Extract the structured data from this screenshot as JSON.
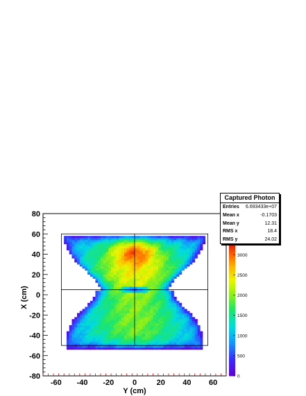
{
  "chart_data": {
    "type": "heatmap",
    "title": "",
    "xlabel": "Y (cm)",
    "ylabel": "X (cm)",
    "xlim": [
      -70,
      70
    ],
    "ylim": [
      -80,
      80
    ],
    "x_ticks": [
      "-60",
      "-40",
      "-20",
      "0",
      "20",
      "40",
      "60"
    ],
    "y_ticks": [
      "80",
      "60",
      "40",
      "20",
      "0",
      "-20",
      "-40",
      "-60",
      "-80"
    ],
    "colorbar": {
      "min": 0,
      "max": 3300,
      "ticks": [
        "3000",
        "2500",
        "2000",
        "1500",
        "1000",
        "500",
        "0"
      ],
      "tick_values": [
        3000,
        2500,
        2000,
        1500,
        1000,
        500,
        0
      ]
    },
    "overlay_box": {
      "x": [
        -56,
        56
      ],
      "y": [
        -50,
        60
      ]
    },
    "crosshair": {
      "x": 0,
      "y": 5
    },
    "description_shape": "hourglass-shaped photon distribution, peak near top center, depleted spot at center"
  },
  "stats_box": {
    "title": "Captured Photon",
    "rows": [
      {
        "label": "Entries",
        "value": "6.693433e+07"
      },
      {
        "label": "Mean x",
        "value": "-0.1703"
      },
      {
        "label": "Mean y",
        "value": "12.31"
      },
      {
        "label": "RMS x",
        "value": "18.4"
      },
      {
        "label": "RMS y",
        "value": "24.02"
      }
    ]
  }
}
